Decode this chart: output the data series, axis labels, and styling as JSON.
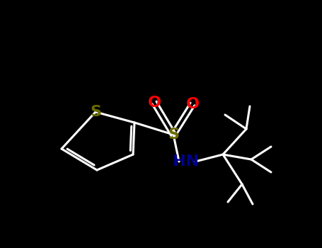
{
  "background_color": "#000000",
  "thiophene_S_color": "#6b6b00",
  "sulfonyl_S_color": "#6b6b00",
  "oxygen_color": "#ff0000",
  "nitrogen_color": "#00008b",
  "bond_color": "#ffffff",
  "atom_S_thiophene": "S",
  "atom_S_sulfonyl": "S",
  "atom_O1": "O",
  "atom_O2": "O",
  "atom_NH": "HN",
  "bond_lw": 2.2,
  "fontsize": 16,
  "figsize": [
    4.55,
    3.5
  ],
  "dpi": 100
}
